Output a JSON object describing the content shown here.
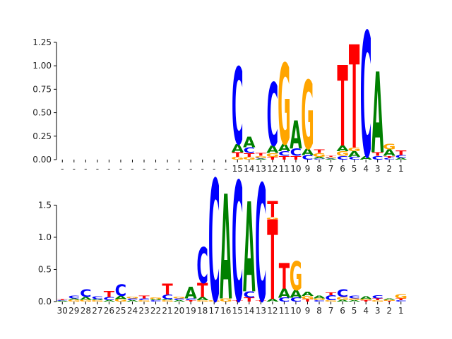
{
  "colors": {
    "A": "#008000",
    "C": "#0000ff",
    "G": "#ffa500",
    "T": "#ff0000"
  },
  "chart_data": [
    {
      "type": "sequence-logo",
      "title": "",
      "xlabel": "",
      "ylabel": "",
      "ylim": [
        0,
        1.4
      ],
      "yticks": [
        0.0,
        0.25,
        0.5,
        0.75,
        1.0,
        1.25
      ],
      "ytick_labels": [
        "0.00",
        "0.25",
        "0.50",
        "0.75",
        "1.00",
        "1.25"
      ],
      "categories": [
        "-",
        "-",
        "-",
        "-",
        "-",
        "-",
        "-",
        "-",
        "-",
        "-",
        "-",
        "-",
        "-",
        "-",
        "-",
        "15",
        "14",
        "13",
        "12",
        "11",
        "10",
        "9",
        "8",
        "7",
        "6",
        "5",
        "4",
        "3",
        "2",
        "1"
      ],
      "stacks": [
        [],
        [],
        [],
        [],
        [],
        [],
        [],
        [],
        [],
        [],
        [],
        [],
        [],
        [],
        [],
        [
          [
            "G",
            0.03
          ],
          [
            "T",
            0.05
          ],
          [
            "A",
            0.09
          ],
          [
            "C",
            0.82
          ]
        ],
        [
          [
            "G",
            0.03
          ],
          [
            "T",
            0.04
          ],
          [
            "C",
            0.06
          ],
          [
            "A",
            0.11
          ]
        ],
        [
          [
            "A",
            0.01
          ],
          [
            "C",
            0.01
          ],
          [
            "G",
            0.02
          ],
          [
            "T",
            0.03
          ]
        ],
        [
          [
            "T",
            0.03
          ],
          [
            "G",
            0.04
          ],
          [
            "A",
            0.08
          ],
          [
            "C",
            0.67
          ]
        ],
        [
          [
            "T",
            0.04
          ],
          [
            "C",
            0.05
          ],
          [
            "A",
            0.08
          ],
          [
            "G",
            0.86
          ]
        ],
        [
          [
            "T",
            0.04
          ],
          [
            "C",
            0.08
          ],
          [
            "A",
            0.3
          ]
        ],
        [
          [
            "C",
            0.05
          ],
          [
            "A",
            0.07
          ],
          [
            "G",
            0.73
          ]
        ],
        [
          [
            "C",
            0.01
          ],
          [
            "A",
            0.02
          ],
          [
            "G",
            0.04
          ],
          [
            "T",
            0.04
          ]
        ],
        [
          [
            "A",
            0.01
          ],
          [
            "C",
            0.01
          ],
          [
            "G",
            0.01
          ],
          [
            "T",
            0.01
          ]
        ],
        [
          [
            "C",
            0.04
          ],
          [
            "G",
            0.05
          ],
          [
            "A",
            0.06
          ],
          [
            "T",
            0.86
          ]
        ],
        [
          [
            "C",
            0.03
          ],
          [
            "A",
            0.06
          ],
          [
            "G",
            0.04
          ],
          [
            "T",
            1.1
          ]
        ],
        [
          [
            "A",
            0.04
          ],
          [
            "C",
            1.33
          ]
        ],
        [
          [
            "C",
            0.04
          ],
          [
            "T",
            0.04
          ],
          [
            "A",
            0.86
          ]
        ],
        [
          [
            "C",
            0.02
          ],
          [
            "T",
            0.02
          ],
          [
            "A",
            0.07
          ],
          [
            "G",
            0.06
          ]
        ],
        [
          [
            "A",
            0.02
          ],
          [
            "C",
            0.03
          ],
          [
            "T",
            0.05
          ]
        ]
      ]
    },
    {
      "type": "sequence-logo",
      "title": "",
      "xlabel": "",
      "ylabel": "",
      "ylim": [
        0,
        1.9
      ],
      "yticks": [
        0.0,
        0.5,
        1.0,
        1.5
      ],
      "ytick_labels": [
        "0.0",
        "0.5",
        "1.0",
        "1.5"
      ],
      "categories": [
        "30",
        "29",
        "28",
        "27",
        "26",
        "25",
        "24",
        "23",
        "22",
        "21",
        "20",
        "19",
        "18",
        "17",
        "16",
        "15",
        "14",
        "13",
        "12",
        "11",
        "10",
        "9",
        "8",
        "7",
        "6",
        "5",
        "4",
        "3",
        "2",
        "1"
      ],
      "stacks": [
        [
          [
            "A",
            0.01
          ],
          [
            "C",
            0.01
          ],
          [
            "T",
            0.01
          ]
        ],
        [
          [
            "G",
            0.03
          ],
          [
            "A",
            0.02
          ],
          [
            "C",
            0.04
          ]
        ],
        [
          [
            "G",
            0.03
          ],
          [
            "A",
            0.04
          ],
          [
            "C",
            0.12
          ]
        ],
        [
          [
            "G",
            0.02
          ],
          [
            "A",
            0.02
          ],
          [
            "C",
            0.04
          ]
        ],
        [
          [
            "A",
            0.02
          ],
          [
            "C",
            0.05
          ],
          [
            "T",
            0.09
          ]
        ],
        [
          [
            "G",
            0.04
          ],
          [
            "A",
            0.05
          ],
          [
            "C",
            0.18
          ]
        ],
        [
          [
            "A",
            0.02
          ],
          [
            "C",
            0.03
          ],
          [
            "G",
            0.03
          ]
        ],
        [
          [
            "G",
            0.02
          ],
          [
            "C",
            0.03
          ],
          [
            "T",
            0.04
          ]
        ],
        [
          [
            "C",
            0.02
          ],
          [
            "A",
            0.02
          ],
          [
            "G",
            0.03
          ]
        ],
        [
          [
            "G",
            0.02
          ],
          [
            "A",
            0.02
          ],
          [
            "C",
            0.07
          ],
          [
            "T",
            0.17
          ]
        ],
        [
          [
            "A",
            0.02
          ],
          [
            "C",
            0.03
          ],
          [
            "G",
            0.03
          ]
        ],
        [
          [
            "T",
            0.02
          ],
          [
            "C",
            0.03
          ],
          [
            "A",
            0.18
          ]
        ],
        [
          [
            "G",
            0.02
          ],
          [
            "A",
            0.05
          ],
          [
            "T",
            0.22
          ],
          [
            "C",
            0.56
          ]
        ],
        [
          [
            "G",
            0.02
          ],
          [
            "C",
            1.89
          ]
        ],
        [
          [
            "G",
            0.05
          ],
          [
            "A",
            1.63
          ]
        ],
        [
          [
            "T",
            0.02
          ],
          [
            "C",
            1.86
          ]
        ],
        [
          [
            "T",
            0.06
          ],
          [
            "C",
            0.1
          ],
          [
            "A",
            1.4
          ]
        ],
        [
          [
            "T",
            0.02
          ],
          [
            "C",
            1.82
          ]
        ],
        [
          [
            "A",
            0.04
          ],
          [
            "T",
            1.24
          ],
          [
            "G",
            0.03
          ],
          [
            "T",
            0.25
          ]
        ],
        [
          [
            "C",
            0.06
          ],
          [
            "A",
            0.14
          ],
          [
            "T",
            0.4
          ]
        ],
        [
          [
            "C",
            0.06
          ],
          [
            "A",
            0.12
          ],
          [
            "G",
            0.45
          ]
        ],
        [
          [
            "T",
            0.04
          ],
          [
            "G",
            0.05
          ],
          [
            "A",
            0.06
          ]
        ],
        [
          [
            "C",
            0.02
          ],
          [
            "G",
            0.03
          ],
          [
            "A",
            0.04
          ]
        ],
        [
          [
            "G",
            0.02
          ],
          [
            "C",
            0.08
          ],
          [
            "T",
            0.04
          ]
        ],
        [
          [
            "A",
            0.03
          ],
          [
            "G",
            0.04
          ],
          [
            "C",
            0.12
          ]
        ],
        [
          [
            "A",
            0.02
          ],
          [
            "G",
            0.03
          ],
          [
            "C",
            0.04
          ]
        ],
        [
          [
            "T",
            0.02
          ],
          [
            "G",
            0.02
          ],
          [
            "A",
            0.04
          ]
        ],
        [
          [
            "G",
            0.02
          ],
          [
            "T",
            0.03
          ],
          [
            "C",
            0.05
          ]
        ],
        [
          [
            "T",
            0.01
          ],
          [
            "G",
            0.02
          ],
          [
            "A",
            0.02
          ]
        ],
        [
          [
            "C",
            0.02
          ],
          [
            "T",
            0.03
          ],
          [
            "G",
            0.06
          ]
        ]
      ]
    }
  ]
}
